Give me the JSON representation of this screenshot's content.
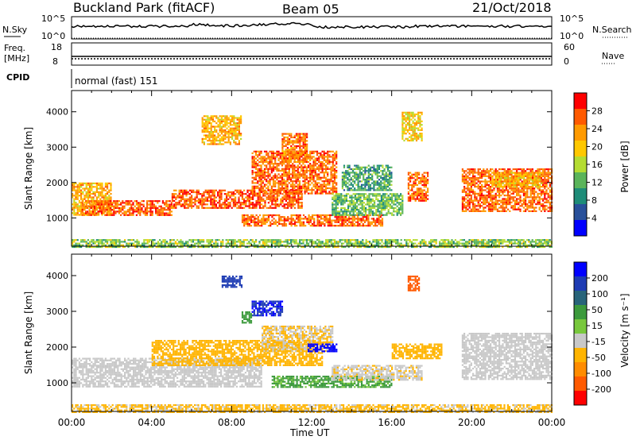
{
  "header": {
    "title": "Buckland Park (fitACF)",
    "beam": "Beam 05",
    "date": "21/Oct/2018"
  },
  "top_panels": {
    "nsky_label": "N.Sky",
    "nsky_ticks": [
      "10^5",
      "10^0"
    ],
    "nsearch_label": "N.Search",
    "nsearch_ticks": [
      "10^5",
      "10^0"
    ],
    "freq_label_1": "Freq.",
    "freq_label_2": "[MHz]",
    "freq_ticks": [
      "18",
      "8"
    ],
    "nave_label": "Nave",
    "nave_ticks": [
      "60",
      "0"
    ],
    "cpid_label": "CPID",
    "cpid_value": "normal (fast) 151"
  },
  "power_colorbar": {
    "label": "Power [dB]",
    "ticks": [
      "28",
      "24",
      "20",
      "16",
      "12",
      "8",
      "4"
    ],
    "colors": [
      "#ff0000",
      "#ff5a00",
      "#ff9a00",
      "#ffc800",
      "#b4dc32",
      "#5ab45a",
      "#1e8c78",
      "#28509a",
      "#0000ff"
    ]
  },
  "velocity_colorbar": {
    "label": "Velocity [m s⁻¹]",
    "ticks": [
      "200",
      "100",
      "50",
      "15",
      "-15",
      "-50",
      "-100",
      "-200"
    ],
    "colors": [
      "#0000ff",
      "#1e3cb4",
      "#28647a",
      "#3c9a3c",
      "#78c83c",
      "#c8c8c8",
      "#ffb400",
      "#ff8c00",
      "#ff5a00",
      "#ff0000"
    ]
  },
  "chart_data": [
    {
      "type": "heatmap",
      "panel": "power",
      "ylabel": "Slant Range [km]",
      "xlabel": "Time UT",
      "x_ticks": [
        "00:00",
        "04:00",
        "08:00",
        "12:00",
        "16:00",
        "20:00",
        "00:00"
      ],
      "y_ticks": [
        "1000",
        "2000",
        "3000",
        "4000"
      ],
      "xlim": [
        0,
        24
      ],
      "ylim": [
        200,
        4600
      ],
      "colorbar": "Power [dB]",
      "regions": [
        {
          "t": [
            0.0,
            2.0
          ],
          "range": [
            1100,
            2000
          ],
          "power": 22
        },
        {
          "t": [
            0.5,
            5.0
          ],
          "range": [
            1100,
            1500
          ],
          "power": 28
        },
        {
          "t": [
            5.0,
            11.5
          ],
          "range": [
            1300,
            1800
          ],
          "power": 28
        },
        {
          "t": [
            9.0,
            13.2
          ],
          "range": [
            1700,
            2900
          ],
          "power": 27
        },
        {
          "t": [
            10.5,
            11.8
          ],
          "range": [
            2600,
            3400
          ],
          "power": 26
        },
        {
          "t": [
            8.5,
            15.5
          ],
          "range": [
            800,
            1100
          ],
          "power": 27
        },
        {
          "t": [
            13.0,
            16.5
          ],
          "range": [
            1100,
            1700
          ],
          "power": 13
        },
        {
          "t": [
            13.5,
            16.0
          ],
          "range": [
            1800,
            2500
          ],
          "power": 10
        },
        {
          "t": [
            16.8,
            17.8
          ],
          "range": [
            1500,
            2300
          ],
          "power": 27
        },
        {
          "t": [
            16.5,
            17.5
          ],
          "range": [
            3200,
            4000
          ],
          "power": 20
        },
        {
          "t": [
            19.5,
            24.0
          ],
          "range": [
            1200,
            2400
          ],
          "power": 27
        },
        {
          "t": [
            21.0,
            23.5
          ],
          "range": [
            1900,
            2300
          ],
          "power": 22
        },
        {
          "t": [
            6.5,
            8.5
          ],
          "range": [
            3100,
            3900
          ],
          "power": 22
        },
        {
          "t": [
            0.0,
            24.0
          ],
          "range": [
            200,
            400
          ],
          "power": 14
        }
      ]
    },
    {
      "type": "heatmap",
      "panel": "velocity",
      "ylabel": "Slant Range [km]",
      "xlabel": "Time UT",
      "x_ticks": [
        "00:00",
        "04:00",
        "08:00",
        "12:00",
        "16:00",
        "20:00",
        "00:00"
      ],
      "y_ticks": [
        "1000",
        "2000",
        "3000",
        "4000"
      ],
      "xlim": [
        0,
        24
      ],
      "ylim": [
        200,
        4600
      ],
      "colorbar": "Velocity [m s⁻¹]",
      "regions": [
        {
          "t": [
            0.0,
            9.5
          ],
          "range": [
            900,
            1700
          ],
          "velocity": 0
        },
        {
          "t": [
            4.0,
            12.5
          ],
          "range": [
            1500,
            2200
          ],
          "velocity": -30
        },
        {
          "t": [
            9.5,
            13.0
          ],
          "range": [
            1900,
            2600
          ],
          "velocity": -15
        },
        {
          "t": [
            11.8,
            13.2
          ],
          "range": [
            1900,
            2100
          ],
          "velocity": 220
        },
        {
          "t": [
            9.0,
            10.5
          ],
          "range": [
            2900,
            3300
          ],
          "velocity": 200
        },
        {
          "t": [
            8.5,
            9.0
          ],
          "range": [
            2700,
            3000
          ],
          "velocity": 40
        },
        {
          "t": [
            7.5,
            8.5
          ],
          "range": [
            3700,
            4000
          ],
          "velocity": 180
        },
        {
          "t": [
            10.0,
            16.0
          ],
          "range": [
            900,
            1200
          ],
          "velocity": 30
        },
        {
          "t": [
            13.0,
            17.5
          ],
          "range": [
            1100,
            1500
          ],
          "velocity": -10
        },
        {
          "t": [
            16.0,
            18.5
          ],
          "range": [
            1700,
            2100
          ],
          "velocity": -40
        },
        {
          "t": [
            19.5,
            24.0
          ],
          "range": [
            1100,
            2400
          ],
          "velocity": 0
        },
        {
          "t": [
            16.8,
            17.4
          ],
          "range": [
            3600,
            4000
          ],
          "velocity": -150
        },
        {
          "t": [
            0.0,
            24.0
          ],
          "range": [
            200,
            400
          ],
          "velocity": -20
        }
      ]
    }
  ]
}
